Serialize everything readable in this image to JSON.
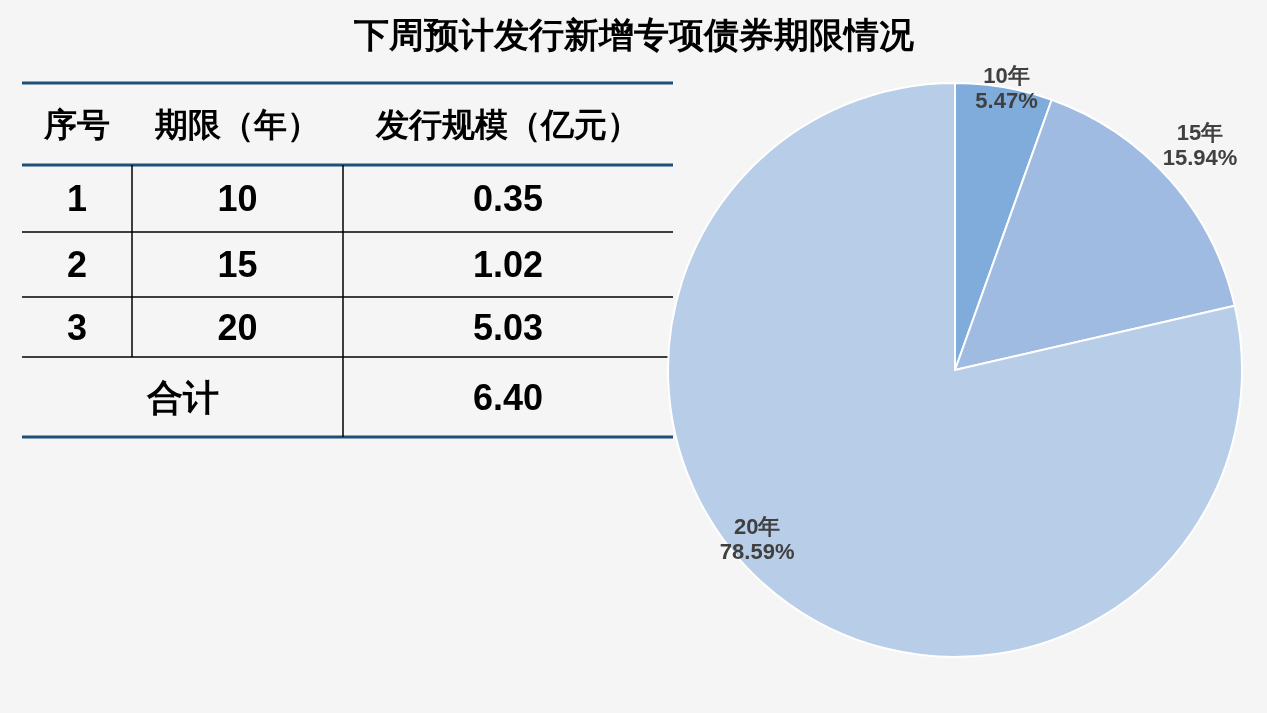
{
  "chart_data": [
    {
      "type": "other",
      "title": "下周预计发行新增专项债券期限情况",
      "categories": [
        "序号",
        "期限（年）",
        "发行规模（亿元）"
      ],
      "cell_labels": [
        [
          "1",
          "10",
          "0.35"
        ],
        [
          "2",
          "15",
          "1.02"
        ],
        [
          "3",
          "20",
          "5.03"
        ],
        [
          "合计",
          null,
          "6.40"
        ]
      ]
    },
    {
      "type": "pie",
      "categories": [
        "10年",
        "15年",
        "20年"
      ],
      "values": [
        5.47,
        15.94,
        78.59
      ],
      "colors": [
        "#80acdb",
        "#9fbbe2",
        "#b8cde8"
      ],
      "value_labels": [
        "5.47%",
        "15.94%",
        "78.59%"
      ]
    }
  ]
}
